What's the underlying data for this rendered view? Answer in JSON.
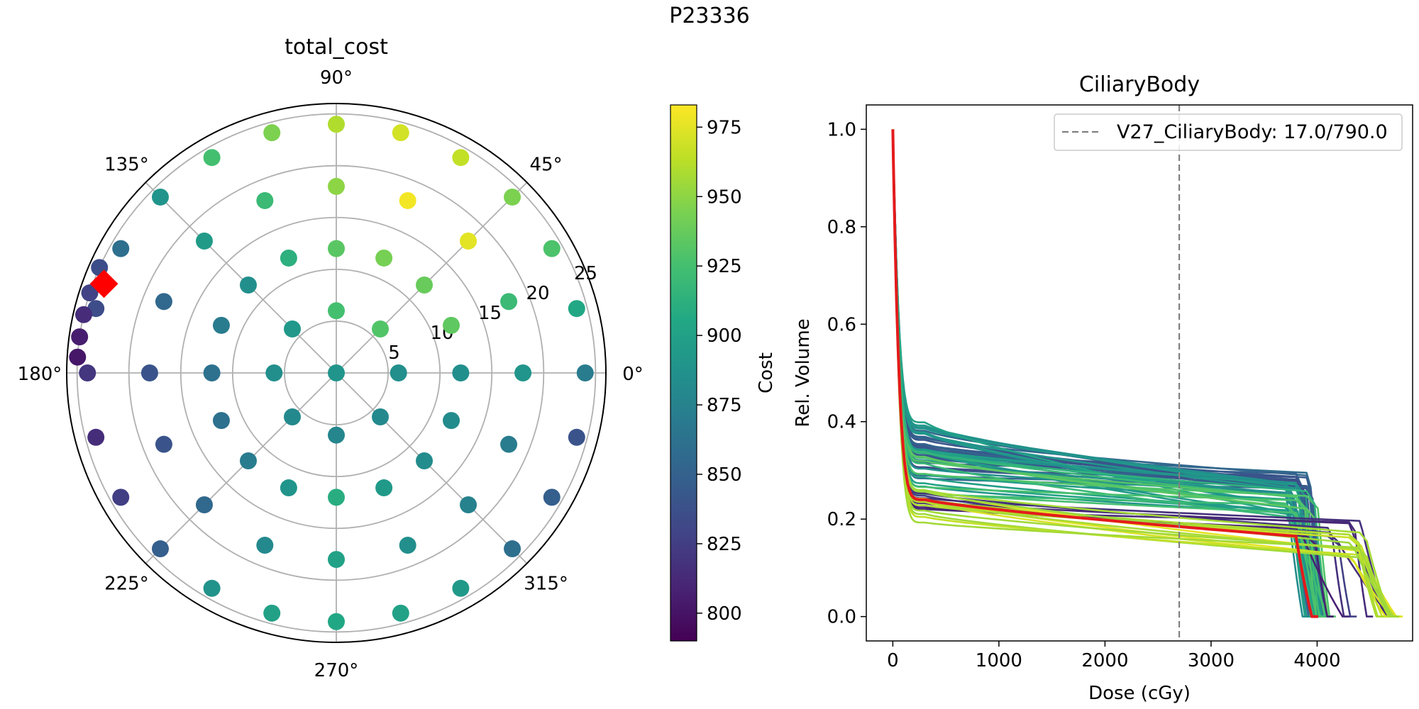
{
  "figure_title": "P23336",
  "chart_data": [
    {
      "type": "scatter",
      "projection": "polar",
      "title": "total_cost",
      "angle_tick_labels": [
        "0°",
        "45°",
        "90°",
        "135°",
        "180°",
        "225°",
        "270°",
        "315°"
      ],
      "radial_tick_labels": [
        "5",
        "10",
        "15",
        "20",
        "25"
      ],
      "rlim": [
        0,
        26
      ],
      "grid": true,
      "colormap": "viridis",
      "colorbar": {
        "label": "Cost",
        "range": [
          790,
          983
        ],
        "ticks": [
          "800",
          "825",
          "850",
          "875",
          "900",
          "925",
          "950",
          "975"
        ]
      },
      "rings": [
        {
          "r": 0,
          "angles": [
            0
          ],
          "costs": [
            890
          ]
        },
        {
          "r": 6,
          "angles": [
            0,
            45,
            90,
            135,
            180,
            225,
            270,
            315
          ],
          "costs": [
            885,
            930,
            925,
            892,
            885,
            880,
            878,
            880
          ]
        },
        {
          "r": 12,
          "angles": [
            0,
            22.5,
            45,
            67.5,
            90,
            112.5,
            135,
            157.5,
            180,
            202.5,
            225,
            247.5,
            270,
            292.5,
            315,
            337.5
          ],
          "costs": [
            885,
            935,
            938,
            943,
            933,
            912,
            885,
            870,
            862,
            862,
            870,
            890,
            910,
            893,
            883,
            882
          ]
        },
        {
          "r": 18,
          "angles": [
            0,
            22.5,
            45,
            67.5,
            90,
            112.5,
            135,
            157.5,
            180,
            202.5,
            225,
            247.5,
            270,
            292.5,
            315,
            337.5
          ],
          "costs": [
            890,
            920,
            975,
            980,
            950,
            920,
            895,
            855,
            840,
            840,
            855,
            880,
            900,
            885,
            875,
            870
          ]
        },
        {
          "r": 24,
          "angles": [
            0,
            15,
            30,
            45,
            60,
            75,
            90,
            105,
            120,
            135,
            150,
            165,
            180,
            195,
            210,
            225,
            240,
            255,
            270,
            285,
            300,
            315,
            330,
            345
          ],
          "costs": [
            870,
            905,
            928,
            945,
            965,
            970,
            960,
            945,
            925,
            890,
            860,
            835,
            820,
            815,
            825,
            848,
            888,
            900,
            905,
            900,
            893,
            860,
            848,
            840
          ]
        },
        {
          "r": 25,
          "angles": [
            156,
            162,
            167,
            172,
            176.5
          ],
          "costs": [
            835,
            828,
            814,
            806,
            802
          ]
        }
      ],
      "highlight": {
        "r": 24,
        "angle": 159,
        "marker": "diamond",
        "color": "#ff0000"
      }
    },
    {
      "type": "line",
      "title": "CiliaryBody",
      "xlabel": "Dose (cGy)",
      "ylabel": "Rel. Volume",
      "xlim": [
        -250,
        4900
      ],
      "ylim": [
        -0.05,
        1.05
      ],
      "x_ticks": [
        "0",
        "1000",
        "2000",
        "3000",
        "4000"
      ],
      "y_ticks": [
        "0.0",
        "0.2",
        "0.4",
        "0.6",
        "0.8",
        "1.0"
      ],
      "legend": {
        "label": "V27_CiliaryBody: 17.0/790.0",
        "position": "upper right",
        "style": "dashed",
        "color": "#808080"
      },
      "reference_line_x": 2700,
      "series_shape": {
        "start_value": 1.0,
        "plateau_start_dose": 300,
        "plateau_end_dose": 3700
      },
      "families": [
        {
          "color_cost": 845,
          "plateau_start": [
            0.28,
            0.4
          ],
          "plateau_end": [
            0.26,
            0.3
          ],
          "falloff_dose": [
            3700,
            3950
          ],
          "end_dose": [
            3900,
            4050
          ],
          "count": 22
        },
        {
          "color_cost": 895,
          "plateau_start": [
            0.26,
            0.4
          ],
          "plateau_end": [
            0.2,
            0.28
          ],
          "falloff_dose": [
            3700,
            3950
          ],
          "end_dose": [
            3850,
            4050
          ],
          "count": 20
        },
        {
          "color_cost": 925,
          "plateau_start": [
            0.24,
            0.34
          ],
          "plateau_end": [
            0.2,
            0.26
          ],
          "falloff_dose": [
            3750,
            4000
          ],
          "end_dose": [
            3900,
            4100
          ],
          "count": 10
        },
        {
          "color_cost": 815,
          "plateau_start": [
            0.22,
            0.26
          ],
          "plateau_end": [
            0.16,
            0.2
          ],
          "falloff_dose": [
            3800,
            4450
          ],
          "end_dose": [
            4000,
            4700
          ],
          "count": 8
        },
        {
          "color_cost": 965,
          "plateau_start": [
            0.19,
            0.26
          ],
          "plateau_end": [
            0.12,
            0.18
          ],
          "falloff_dose": [
            4300,
            4450
          ],
          "end_dose": [
            4550,
            4750
          ],
          "count": 14
        }
      ],
      "highlighted_series": {
        "color": "#e41a1c",
        "plateau_start": 0.24,
        "plateau_end": 0.165,
        "falloff_dose": 3800,
        "end_dose": 3950
      }
    }
  ]
}
